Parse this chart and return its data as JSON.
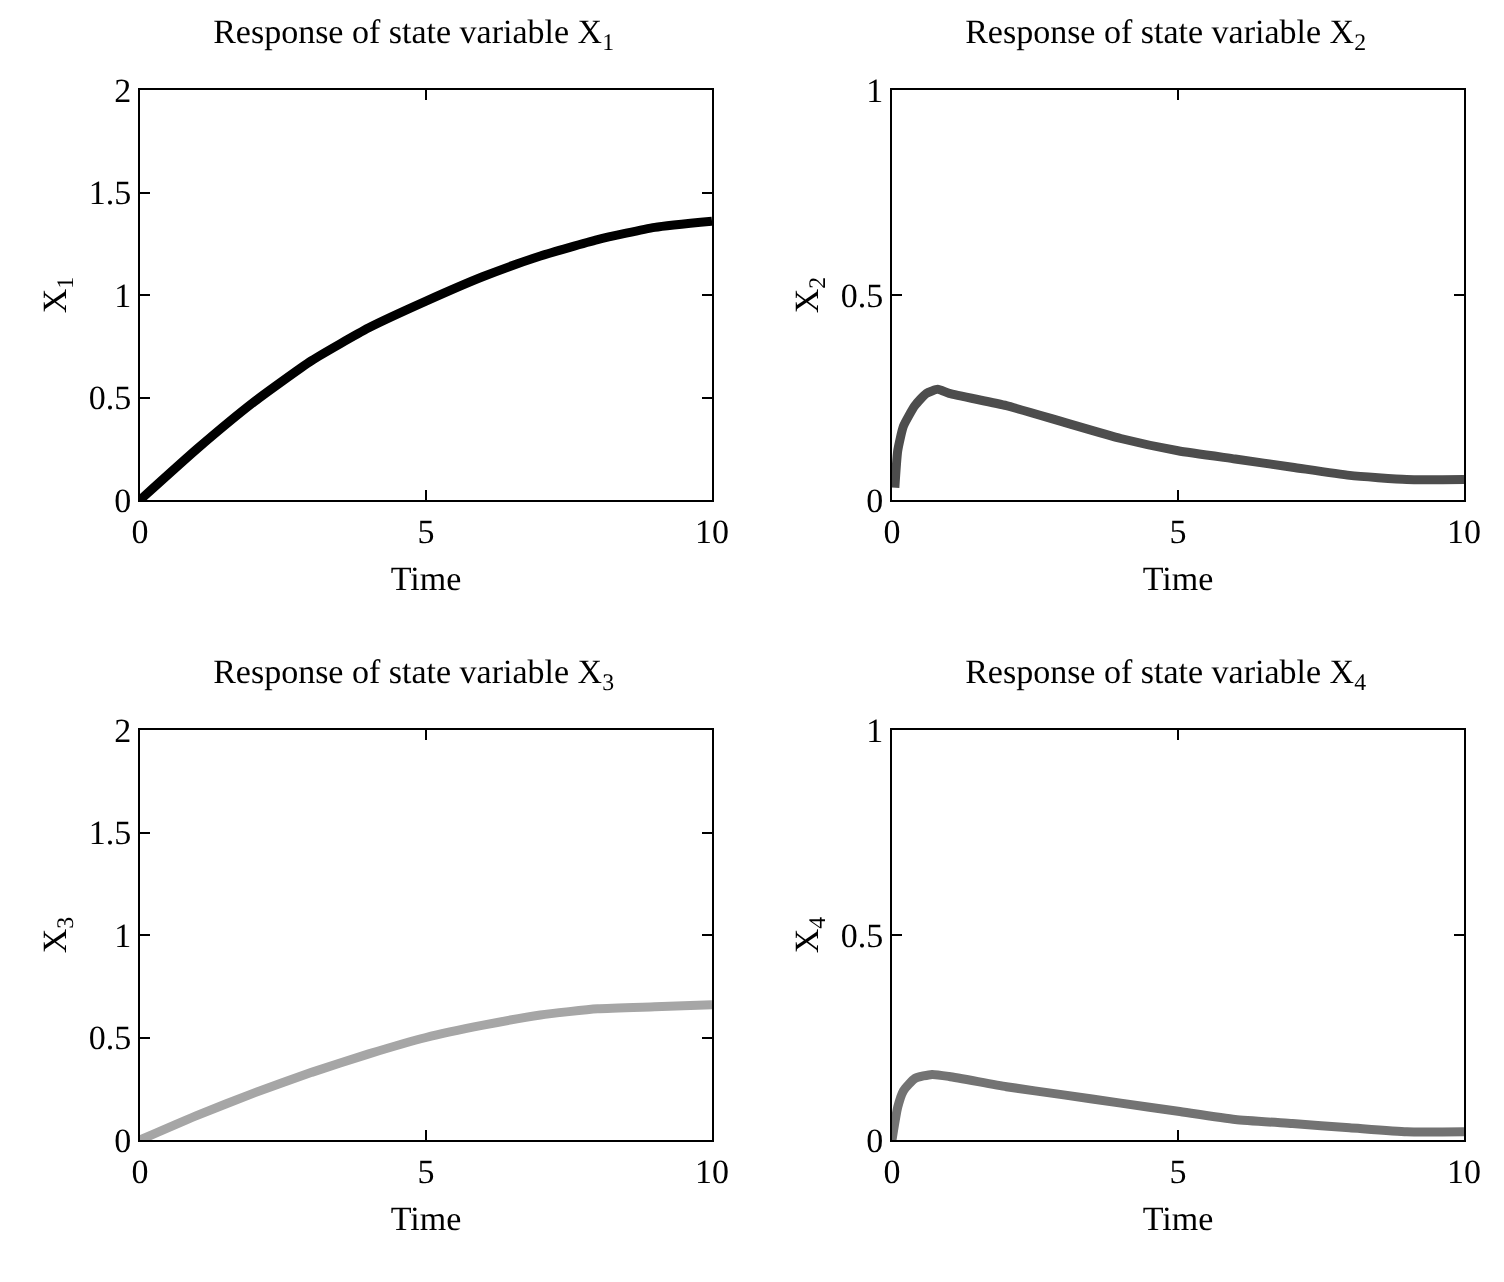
{
  "chart_data": [
    {
      "type": "line",
      "title": "Response of state variable X$_{1}$",
      "xlabel": "Time",
      "ylabel": "X$_{1}$",
      "xlim": [
        0,
        10
      ],
      "xticks": [
        0,
        5,
        10
      ],
      "ylim": [
        0,
        2
      ],
      "yticks": [
        0,
        0.5,
        1,
        1.5,
        2
      ],
      "grid": false,
      "marker": "none",
      "line_style": "solid",
      "series": [
        {
          "color": "#000000",
          "x": [
            0,
            1,
            2,
            3,
            4,
            5,
            6,
            7,
            8,
            9,
            10
          ],
          "values": [
            0,
            0.25,
            0.48,
            0.68,
            0.84,
            0.97,
            1.09,
            1.19,
            1.27,
            1.33,
            1.36
          ]
        }
      ]
    },
    {
      "type": "line",
      "title": "Response of state variable X$_{2}$",
      "xlabel": "Time",
      "ylabel": "X$_{2}$",
      "xlim": [
        0,
        10
      ],
      "xticks": [
        0,
        5,
        10
      ],
      "ylim": [
        0,
        1
      ],
      "yticks": [
        0,
        0.5,
        1
      ],
      "grid": false,
      "marker": "none",
      "line_style": "solid",
      "series": [
        {
          "color": "#4d4d4d",
          "x": [
            0.05,
            0.1,
            0.2,
            0.4,
            0.6,
            0.8,
            1,
            2,
            3,
            4,
            5,
            6,
            7,
            8,
            9,
            10
          ],
          "values": [
            0.03,
            0.12,
            0.18,
            0.23,
            0.26,
            0.27,
            0.26,
            0.23,
            0.19,
            0.15,
            0.12,
            0.1,
            0.08,
            0.06,
            0.05,
            0.05
          ]
        }
      ]
    },
    {
      "type": "line",
      "title": "Response of state variable X$_{3}$",
      "xlabel": "Time",
      "ylabel": "X$_{3}$",
      "xlim": [
        0,
        10
      ],
      "xticks": [
        0,
        5,
        10
      ],
      "ylim": [
        0,
        2
      ],
      "yticks": [
        0,
        0.5,
        1,
        1.5,
        2
      ],
      "grid": false,
      "marker": "none",
      "line_style": "solid",
      "series": [
        {
          "color": "#a6a6a6",
          "x": [
            0,
            1,
            2,
            3,
            4,
            5,
            6,
            7,
            8,
            9,
            10
          ],
          "values": [
            0,
            0.12,
            0.23,
            0.33,
            0.42,
            0.5,
            0.56,
            0.61,
            0.64,
            0.65,
            0.66
          ]
        }
      ]
    },
    {
      "type": "line",
      "title": "Response of state variable X$_{4}$",
      "xlabel": "Time",
      "ylabel": "X$_{4}$",
      "xlim": [
        0,
        10
      ],
      "xticks": [
        0,
        5,
        10
      ],
      "ylim": [
        0,
        1
      ],
      "yticks": [
        0,
        0.5,
        1
      ],
      "grid": false,
      "marker": "none",
      "line_style": "solid",
      "series": [
        {
          "color": "#737373",
          "x": [
            0,
            0.1,
            0.2,
            0.4,
            0.7,
            1,
            2,
            3,
            4,
            5,
            6,
            7,
            8,
            9,
            10
          ],
          "values": [
            0,
            0.08,
            0.12,
            0.15,
            0.16,
            0.155,
            0.13,
            0.11,
            0.09,
            0.07,
            0.05,
            0.04,
            0.03,
            0.02,
            0.02
          ]
        }
      ]
    }
  ]
}
